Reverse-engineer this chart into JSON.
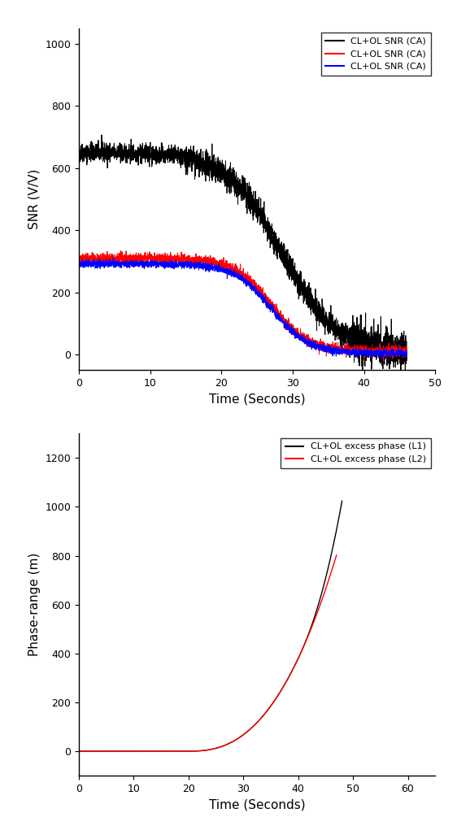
{
  "fig_width": 5.78,
  "fig_height": 10.32,
  "dpi": 100,
  "bg_color": "#ffffff",
  "plot1": {
    "xlabel": "Time (Seconds)",
    "ylabel": "SNR (V/V)",
    "xlim": [
      0,
      50
    ],
    "ylim": [
      -50,
      1050
    ],
    "xticks": [
      0,
      10,
      20,
      30,
      40,
      50
    ],
    "yticks": [
      0,
      200,
      400,
      600,
      800,
      1000
    ],
    "legend": [
      {
        "label": "CL+OL SNR (CA)",
        "color": "#000000"
      },
      {
        "label": "CL+OL SNR (CA)",
        "color": "#ff0000"
      },
      {
        "label": "CL+OL SNR (CA)",
        "color": "#0000ff"
      }
    ]
  },
  "plot2": {
    "xlabel": "Time (Seconds)",
    "ylabel": "Phase-range (m)",
    "xlim": [
      0,
      65
    ],
    "ylim": [
      -100,
      1300
    ],
    "xticks": [
      0,
      10,
      20,
      30,
      40,
      50,
      60
    ],
    "yticks": [
      0,
      200,
      400,
      600,
      800,
      1000,
      1200
    ],
    "legend": [
      {
        "label": "CL+OL excess phase (L1)",
        "color": "#000000"
      },
      {
        "label": "CL+OL excess phase (L2)",
        "color": "#ff0000"
      }
    ]
  }
}
